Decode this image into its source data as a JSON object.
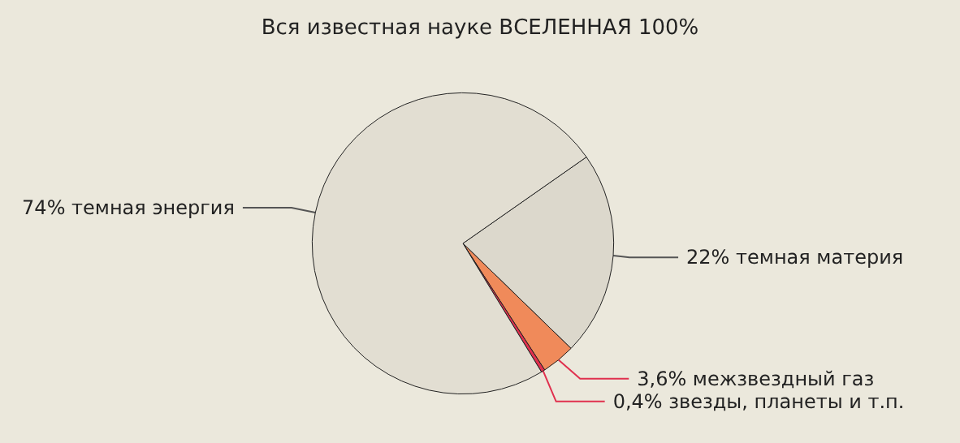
{
  "chart_data": {
    "type": "pie",
    "title": "Вся известная науке ВСЕЛЕННАЯ 100%",
    "categories": [
      "темная материя",
      "межзвездный газ",
      "звезды, планеты и т.п.",
      "темная энергия"
    ],
    "values": [
      22,
      3.6,
      0.4,
      74
    ],
    "value_labels": [
      "22%",
      "3,6%",
      "0,4%",
      "74%"
    ],
    "colors": [
      "#dcd8cc",
      "#f08a5a",
      "#e0304e",
      "#e2ded2"
    ],
    "legend": false
  }
}
